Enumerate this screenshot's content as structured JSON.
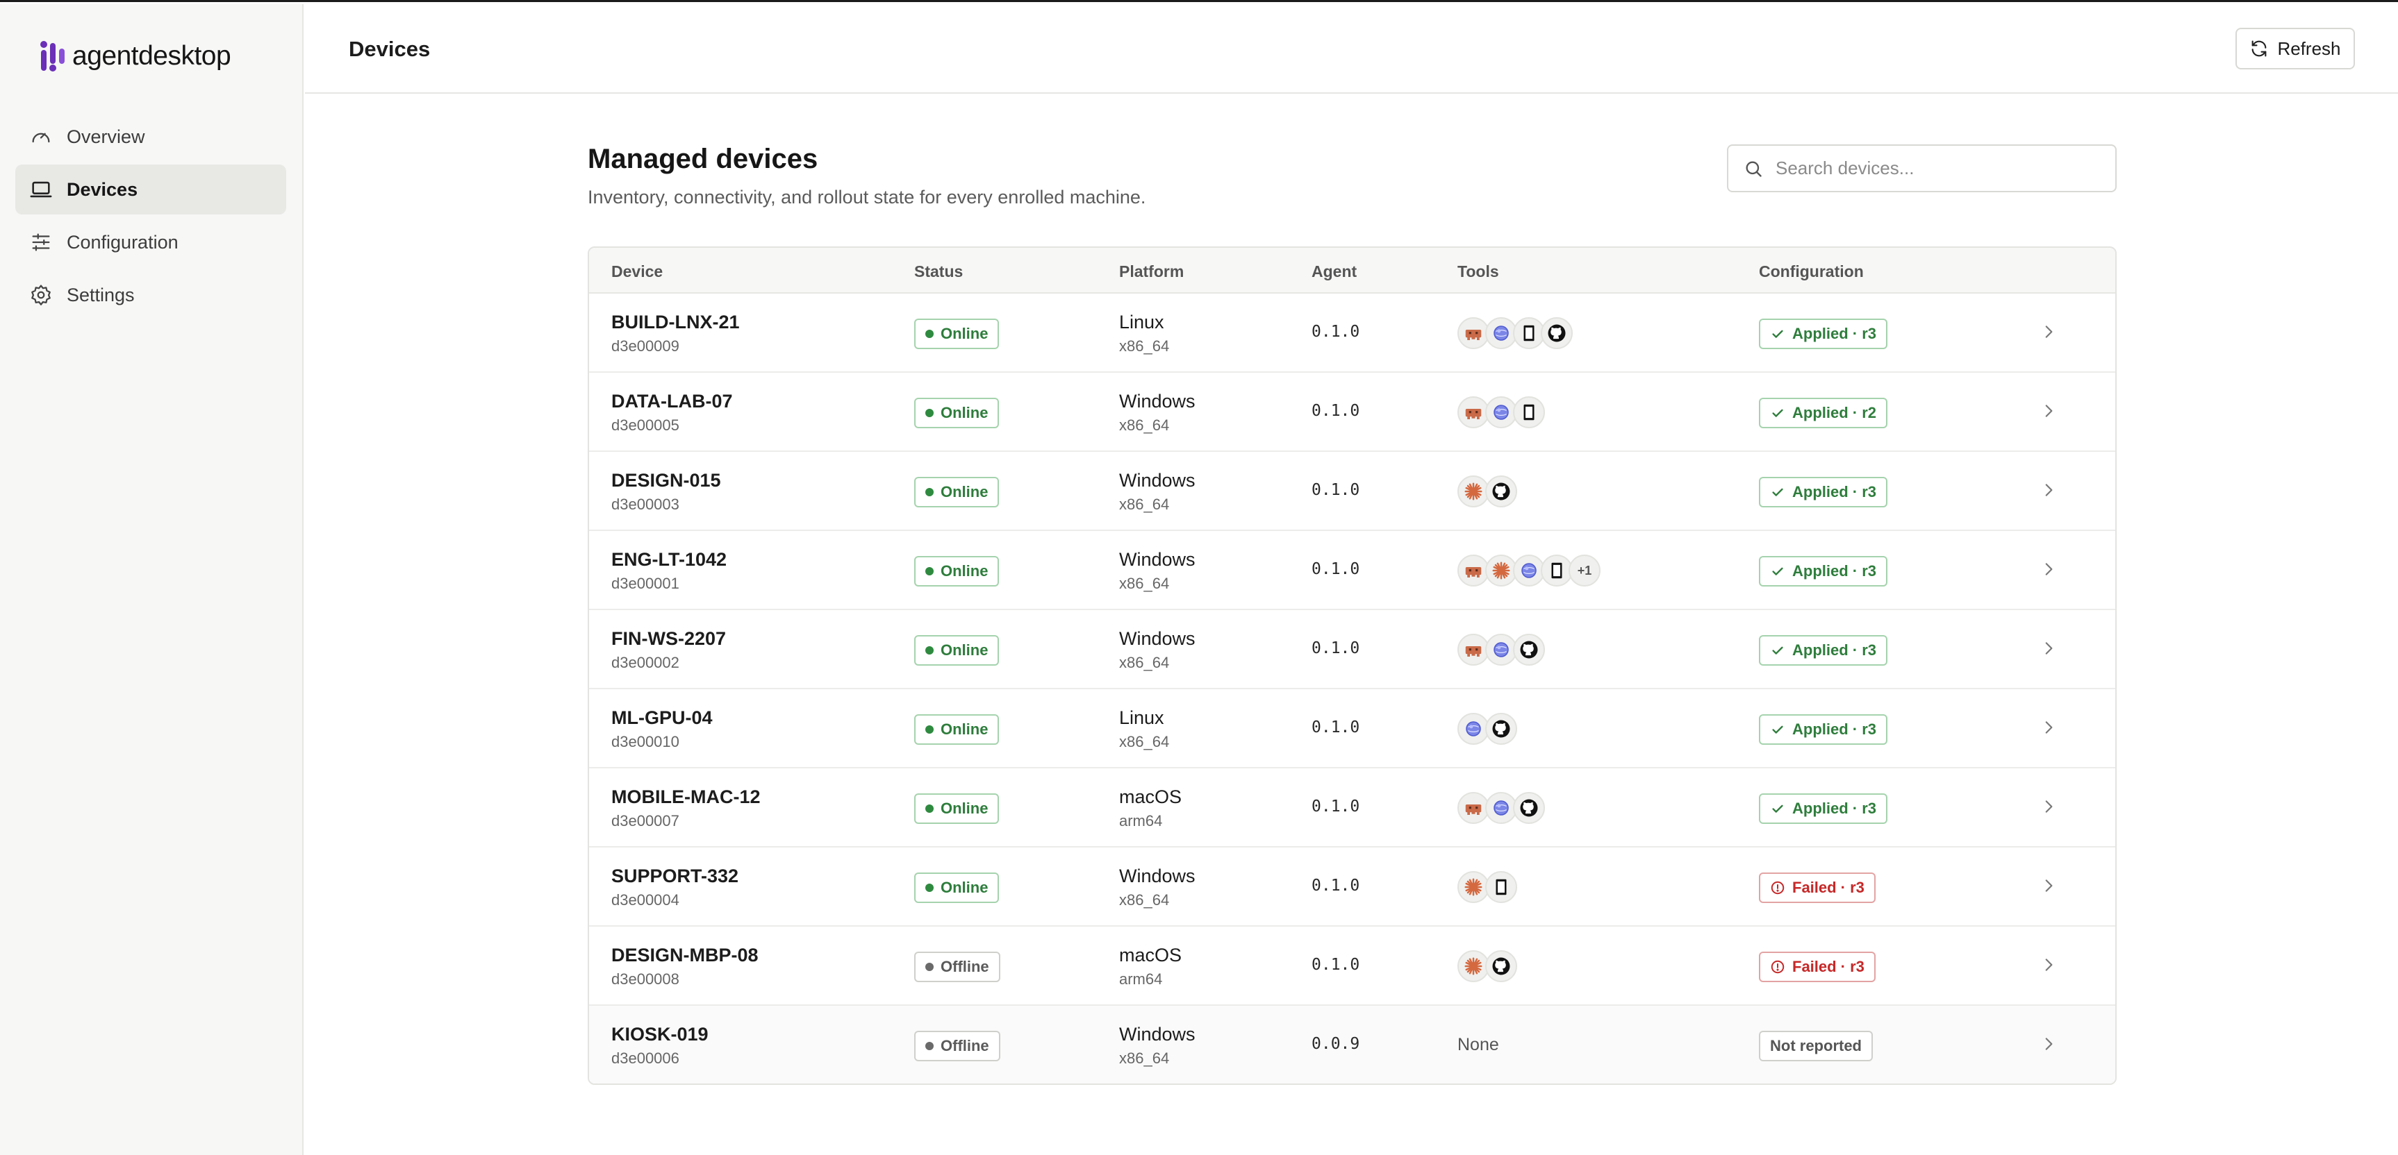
{
  "brand": {
    "name": "agentdesktop"
  },
  "sidebar": {
    "items": [
      {
        "label": "Overview",
        "icon": "gauge-icon",
        "active": false
      },
      {
        "label": "Devices",
        "icon": "laptop-icon",
        "active": true
      },
      {
        "label": "Configuration",
        "icon": "sliders-icon",
        "active": false
      },
      {
        "label": "Settings",
        "icon": "gear-icon",
        "active": false
      }
    ]
  },
  "header": {
    "title": "Devices",
    "refresh_label": "Refresh"
  },
  "main": {
    "title": "Managed devices",
    "subtitle": "Inventory, connectivity, and rollout state for every enrolled machine.",
    "search_placeholder": "Search devices..."
  },
  "table": {
    "columns": [
      "Device",
      "Status",
      "Platform",
      "Agent",
      "Tools",
      "Configuration"
    ],
    "rows": [
      {
        "name": "BUILD-LNX-21",
        "id": "d3e00009",
        "status": "Online",
        "platform": "Linux",
        "arch": "x86_64",
        "agent": "0.1.0",
        "tools": [
          "bot-icon",
          "globe-icon",
          "terminal-icon",
          "github-icon"
        ],
        "more": "",
        "config": "Applied · r3",
        "config_state": "applied"
      },
      {
        "name": "DATA-LAB-07",
        "id": "d3e00005",
        "status": "Online",
        "platform": "Windows",
        "arch": "x86_64",
        "agent": "0.1.0",
        "tools": [
          "bot-icon",
          "globe-icon",
          "terminal-icon"
        ],
        "more": "",
        "config": "Applied · r2",
        "config_state": "applied"
      },
      {
        "name": "DESIGN-015",
        "id": "d3e00003",
        "status": "Online",
        "platform": "Windows",
        "arch": "x86_64",
        "agent": "0.1.0",
        "tools": [
          "sparkle-icon",
          "github-icon"
        ],
        "more": "",
        "config": "Applied · r3",
        "config_state": "applied"
      },
      {
        "name": "ENG-LT-1042",
        "id": "d3e00001",
        "status": "Online",
        "platform": "Windows",
        "arch": "x86_64",
        "agent": "0.1.0",
        "tools": [
          "bot-icon",
          "sparkle-icon",
          "globe-icon",
          "terminal-icon"
        ],
        "more": "+1",
        "config": "Applied · r3",
        "config_state": "applied"
      },
      {
        "name": "FIN-WS-2207",
        "id": "d3e00002",
        "status": "Online",
        "platform": "Windows",
        "arch": "x86_64",
        "agent": "0.1.0",
        "tools": [
          "bot-icon",
          "globe-icon",
          "github-icon"
        ],
        "more": "",
        "config": "Applied · r3",
        "config_state": "applied"
      },
      {
        "name": "ML-GPU-04",
        "id": "d3e00010",
        "status": "Online",
        "platform": "Linux",
        "arch": "x86_64",
        "agent": "0.1.0",
        "tools": [
          "globe-icon",
          "github-icon"
        ],
        "more": "",
        "config": "Applied · r3",
        "config_state": "applied"
      },
      {
        "name": "MOBILE-MAC-12",
        "id": "d3e00007",
        "status": "Online",
        "platform": "macOS",
        "arch": "arm64",
        "agent": "0.1.0",
        "tools": [
          "bot-icon",
          "globe-icon",
          "github-icon"
        ],
        "more": "",
        "config": "Applied · r3",
        "config_state": "applied"
      },
      {
        "name": "SUPPORT-332",
        "id": "d3e00004",
        "status": "Online",
        "platform": "Windows",
        "arch": "x86_64",
        "agent": "0.1.0",
        "tools": [
          "sparkle-icon",
          "terminal-icon"
        ],
        "more": "",
        "config": "Failed · r3",
        "config_state": "failed"
      },
      {
        "name": "DESIGN-MBP-08",
        "id": "d3e00008",
        "status": "Offline",
        "platform": "macOS",
        "arch": "arm64",
        "agent": "0.1.0",
        "tools": [
          "sparkle-icon",
          "github-icon"
        ],
        "more": "",
        "config": "Failed · r3",
        "config_state": "failed"
      },
      {
        "name": "KIOSK-019",
        "id": "d3e00006",
        "status": "Offline",
        "platform": "Windows",
        "arch": "x86_64",
        "agent": "0.0.9",
        "tools": [],
        "tools_empty": "None",
        "more": "",
        "config": "Not reported",
        "config_state": "none"
      }
    ]
  },
  "colors": {
    "online": "#2e7d3c",
    "offline": "#5a5a5a",
    "failed": "#c62828",
    "brand_accent": "#6b2fb8"
  }
}
